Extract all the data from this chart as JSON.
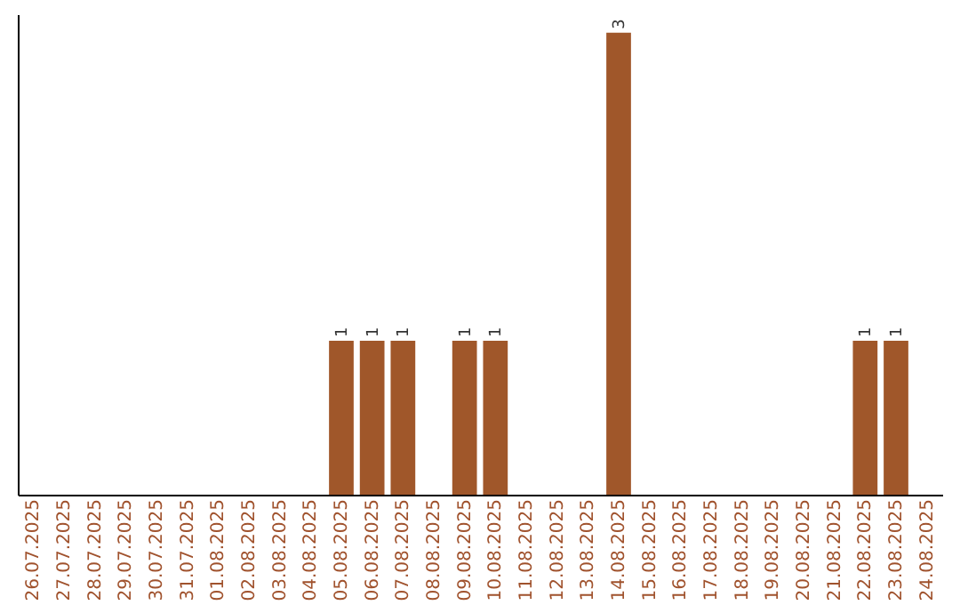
{
  "chart_data": {
    "type": "bar",
    "categories": [
      "26.07.2025",
      "27.07.2025",
      "28.07.2025",
      "29.07.2025",
      "30.07.2025",
      "31.07.2025",
      "01.08.2025",
      "02.08.2025",
      "03.08.2025",
      "04.08.2025",
      "05.08.2025",
      "06.08.2025",
      "07.08.2025",
      "08.08.2025",
      "09.08.2025",
      "10.08.2025",
      "11.08.2025",
      "12.08.2025",
      "13.08.2025",
      "14.08.2025",
      "15.08.2025",
      "16.08.2025",
      "17.08.2025",
      "18.08.2025",
      "19.08.2025",
      "20.08.2025",
      "21.08.2025",
      "22.08.2025",
      "23.08.2025",
      "24.08.2025"
    ],
    "values": [
      0,
      0,
      0,
      0,
      0,
      0,
      0,
      0,
      0,
      0,
      1,
      1,
      1,
      0,
      1,
      1,
      0,
      0,
      0,
      3,
      0,
      0,
      0,
      0,
      0,
      0,
      0,
      1,
      1,
      0
    ],
    "value_labels": [
      null,
      null,
      null,
      null,
      null,
      null,
      null,
      null,
      null,
      null,
      "1",
      "1",
      "1",
      null,
      "1",
      "1",
      null,
      null,
      null,
      "3",
      null,
      null,
      null,
      null,
      null,
      null,
      null,
      "1",
      "1",
      null
    ],
    "color": "#a0572a",
    "grid": false,
    "tick_labels": "x"
  }
}
